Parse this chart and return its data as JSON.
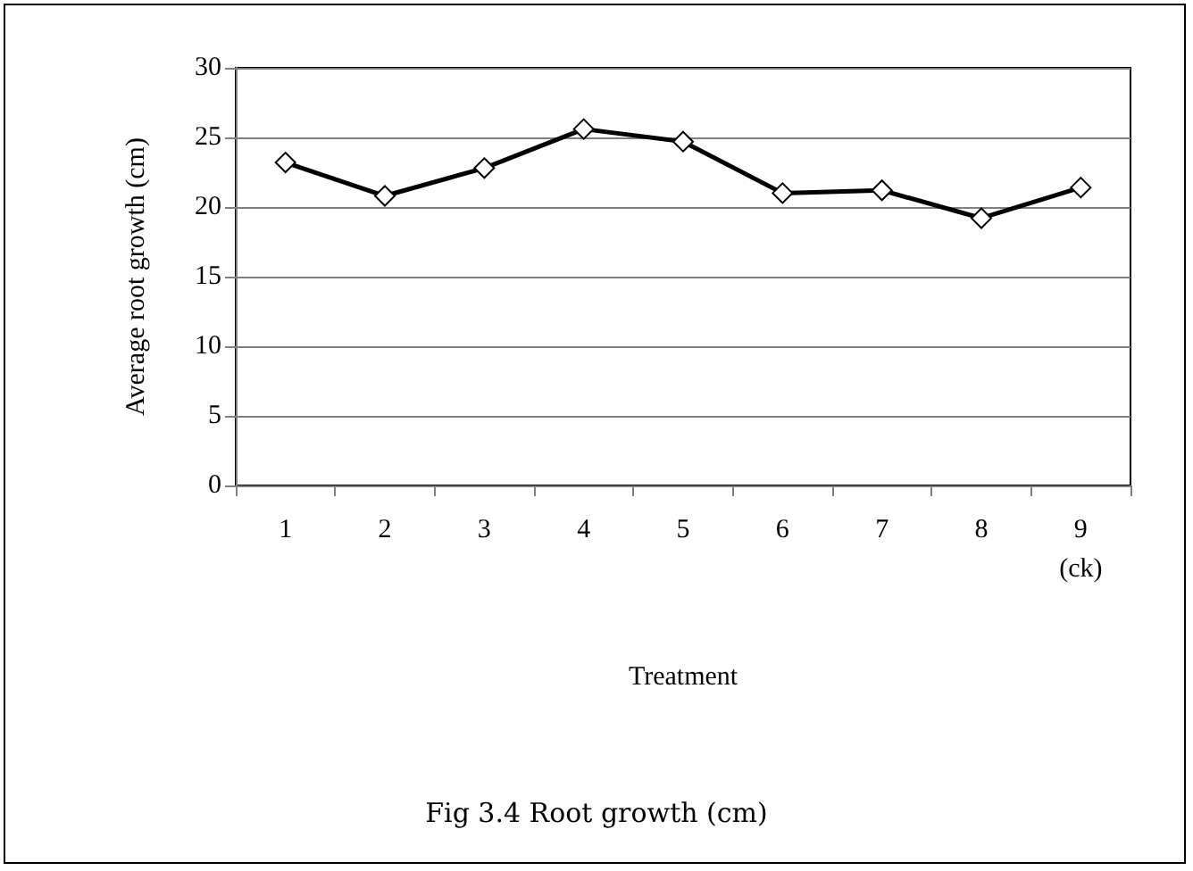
{
  "chart_data": {
    "type": "line",
    "title": "Fig 3.4 Root growth (cm)",
    "xlabel": "Treatment",
    "ylabel": "Average root growth (cm)",
    "categories": [
      "1",
      "2",
      "3",
      "4",
      "5",
      "6",
      "7",
      "8",
      "9\n(ck)"
    ],
    "series": [
      {
        "color": "#000000",
        "values": [
          23.2,
          20.8,
          22.8,
          25.6,
          24.7,
          21.0,
          21.2,
          19.2,
          21.4
        ]
      }
    ],
    "ylim": [
      0,
      30
    ],
    "yticks": [
      0,
      5,
      10,
      15,
      20,
      25,
      30
    ],
    "grid": "y",
    "marker": "diamond",
    "line_style": "solid"
  }
}
